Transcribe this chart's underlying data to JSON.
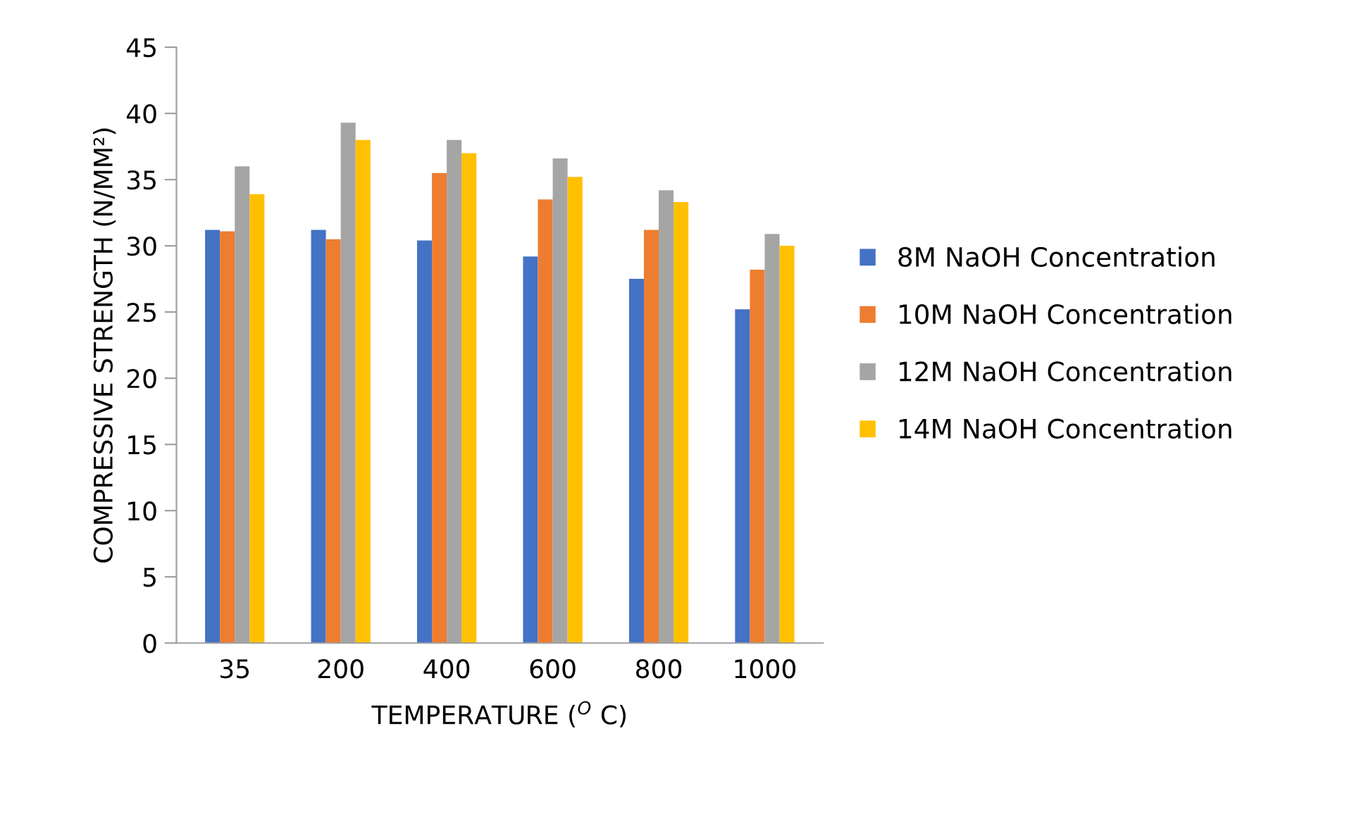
{
  "chart_data": {
    "type": "bar",
    "xlabel": "TEMPERATURE ($^{O}$ C)",
    "ylabel": "COMPRESSIVE STRENGTH (N/MM²)",
    "categories": [
      "35",
      "200",
      "400",
      "600",
      "800",
      "1000"
    ],
    "series": [
      {
        "name": "8M NaOH Concentration",
        "color": "#4472c4",
        "values": [
          31.2,
          31.2,
          30.4,
          29.2,
          27.5,
          25.2
        ]
      },
      {
        "name": "10M NaOH Concentration",
        "color": "#ed7d31",
        "values": [
          31.1,
          30.5,
          35.5,
          33.5,
          31.2,
          28.2
        ]
      },
      {
        "name": "12M NaOH Concentration",
        "color": "#a5a5a5",
        "values": [
          36.0,
          39.3,
          38.0,
          36.6,
          34.2,
          30.9
        ]
      },
      {
        "name": "14M NaOH Concentration",
        "color": "#ffc000",
        "values": [
          33.9,
          38.0,
          37.0,
          35.2,
          33.3,
          30.0
        ]
      }
    ],
    "ylim": [
      0,
      45
    ],
    "yticks": [
      0,
      5,
      10,
      15,
      20,
      25,
      30,
      35,
      40,
      45
    ],
    "grid": false,
    "legend": "right"
  }
}
